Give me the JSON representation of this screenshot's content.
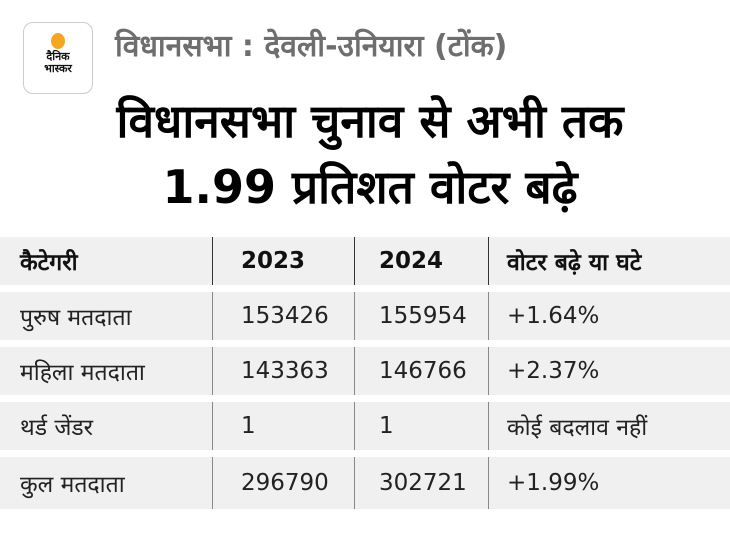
{
  "logo": {
    "line1": "दैनिक",
    "line2": "भास्कर"
  },
  "subtitle": "विधानसभा : देवली-उनियारा (टोंक)",
  "title": "विधानसभा चुनाव से अभी तक 1.99 प्रतिशत वोटर बढ़े",
  "table": {
    "headers": [
      "कैटेगरी",
      "2023",
      "2024",
      "वोटर बढ़े या घटे"
    ],
    "rows": [
      [
        "पुरुष मतदाता",
        "153426",
        "155954",
        "+1.64%"
      ],
      [
        "महिला मतदाता",
        "143363",
        "146766",
        "+2.37%"
      ],
      [
        "थर्ड जेंडर",
        "1",
        "1",
        "कोई बदलाव नहीं"
      ],
      [
        "कुल मतदाता",
        "296790",
        "302721",
        "+1.99%"
      ]
    ]
  },
  "colors": {
    "accent": "#f5a623",
    "row_bg": "#f0f0f0"
  }
}
